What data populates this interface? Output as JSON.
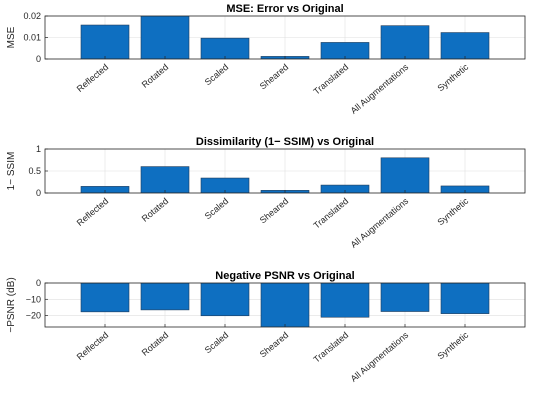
{
  "chart_data": [
    {
      "type": "bar",
      "title": "MSE: Error vs Original",
      "ylabel": "MSE",
      "xlabel": "",
      "categories": [
        "Reflected",
        "Rotated",
        "Scaled",
        "Sheared",
        "Translated",
        "All Augmentations",
        "Synthetic"
      ],
      "values": [
        0.0158,
        0.0205,
        0.0097,
        0.0012,
        0.0077,
        0.0155,
        0.0123
      ],
      "ylim": [
        0,
        0.02
      ],
      "yticks": [
        0,
        0.01,
        0.02
      ],
      "ytick_labels": [
        "0",
        "0.01",
        "0.02"
      ],
      "grid": true,
      "color": "#0e6fc1"
    },
    {
      "type": "bar",
      "title": "Dissimilarity (1− SSIM) vs Original",
      "ylabel": "1− SSIM",
      "xlabel": "",
      "categories": [
        "Reflected",
        "Rotated",
        "Scaled",
        "Sheared",
        "Translated",
        "All Augmentations",
        "Synthetic"
      ],
      "values": [
        0.15,
        0.6,
        0.34,
        0.06,
        0.18,
        0.8,
        0.16
      ],
      "ylim": [
        0,
        1
      ],
      "yticks": [
        0,
        0.5,
        1
      ],
      "ytick_labels": [
        "0",
        "0.5",
        "1"
      ],
      "grid": true,
      "color": "#0e6fc1"
    },
    {
      "type": "bar",
      "title": "Negative PSNR vs Original",
      "ylabel": "−PSNR (dB)",
      "xlabel": "",
      "categories": [
        "Reflected",
        "Rotated",
        "Scaled",
        "Sheared",
        "Translated",
        "All Augmentations",
        "Synthetic"
      ],
      "values": [
        -17.7,
        -16.5,
        -20.1,
        -29.0,
        -21.0,
        -17.5,
        -18.8
      ],
      "ylim": [
        -27,
        0
      ],
      "yticks": [
        -20,
        -10,
        0
      ],
      "ytick_labels": [
        "−20",
        "−10",
        "0"
      ],
      "grid": true,
      "color": "#0e6fc1"
    }
  ]
}
